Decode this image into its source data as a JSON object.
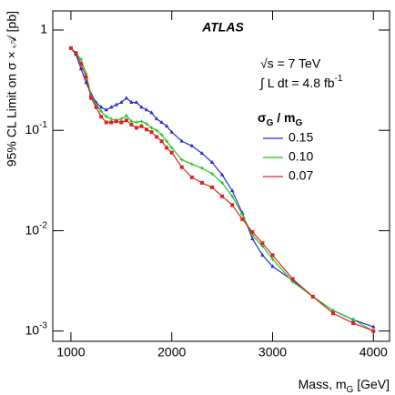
{
  "chart_data": {
    "type": "line",
    "x": [
      1000,
      1050,
      1100,
      1150,
      1200,
      1250,
      1300,
      1350,
      1400,
      1450,
      1500,
      1550,
      1600,
      1650,
      1700,
      1750,
      1800,
      1850,
      1900,
      1950,
      2000,
      2100,
      2200,
      2300,
      2400,
      2500,
      2600,
      2700,
      2800,
      2900,
      3000,
      3200,
      3400,
      3600,
      3800,
      4000
    ],
    "series": [
      {
        "name": "0.15",
        "color": "#2a2ad0",
        "marker": "triangle",
        "values": [
          0.66,
          0.57,
          0.41,
          0.3,
          0.23,
          0.19,
          0.17,
          0.16,
          0.17,
          0.18,
          0.19,
          0.21,
          0.19,
          0.19,
          0.17,
          0.16,
          0.15,
          0.13,
          0.12,
          0.11,
          0.096,
          0.078,
          0.07,
          0.059,
          0.048,
          0.036,
          0.025,
          0.015,
          0.0083,
          0.0057,
          0.0044,
          0.0032,
          0.0022,
          0.0016,
          0.0013,
          0.0011
        ]
      },
      {
        "name": "0.10",
        "color": "#22c422",
        "marker": "cross",
        "values": [
          0.66,
          0.59,
          0.51,
          0.37,
          0.22,
          0.18,
          0.155,
          0.137,
          0.13,
          0.126,
          0.13,
          0.14,
          0.123,
          0.12,
          0.123,
          0.116,
          0.106,
          0.1,
          0.09,
          0.078,
          0.067,
          0.051,
          0.046,
          0.042,
          0.037,
          0.03,
          0.022,
          0.0145,
          0.009,
          0.007,
          0.0052,
          0.0031,
          0.0022,
          0.0016,
          0.0013,
          0.001
        ]
      },
      {
        "name": "0.07",
        "color": "#dd2222",
        "marker": "square",
        "values": [
          0.66,
          0.59,
          0.46,
          0.34,
          0.21,
          0.17,
          0.137,
          0.12,
          0.12,
          0.123,
          0.12,
          0.126,
          0.114,
          0.106,
          0.11,
          0.102,
          0.096,
          0.086,
          0.078,
          0.067,
          0.06,
          0.043,
          0.034,
          0.03,
          0.027,
          0.022,
          0.018,
          0.013,
          0.0097,
          0.0075,
          0.0057,
          0.0033,
          0.0022,
          0.0015,
          0.0012,
          0.001
        ]
      }
    ],
    "xlim": [
      820,
      4160
    ],
    "xticks": [
      1000,
      2000,
      3000,
      4000
    ],
    "ylim": [
      0.00079,
      1.55
    ],
    "yscale": "log",
    "yticks": [
      1,
      {
        "value": 0.1,
        "label": "10",
        "sup": "-1"
      },
      {
        "value": 0.01,
        "label": "10",
        "sup": "-2"
      },
      {
        "value": 0.001,
        "label": "10",
        "sup": "-3"
      }
    ],
    "ylabel": "95% CL Limit on σ × 𝒜 [pb]",
    "xlabel": [
      {
        "text": "Mass, m"
      },
      {
        "sub": "G"
      },
      {
        "text": " [GeV]"
      }
    ],
    "experiment": "ATLAS",
    "energy": "√s = 7 TeV",
    "luminosity": [
      {
        "text": "∫ L dt = 4.8 fb"
      },
      {
        "sup": "-1"
      }
    ],
    "legend_title": [
      {
        "text": "σ"
      },
      {
        "sub": "G"
      },
      {
        "text": " / m"
      },
      {
        "sub": "G"
      }
    ],
    "legend": "upper right"
  }
}
